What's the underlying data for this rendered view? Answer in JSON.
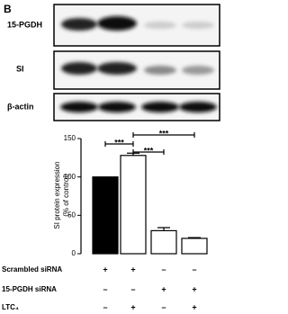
{
  "figure_label": "B",
  "blot_labels": [
    "15-PGDH",
    "SI",
    "β-actin"
  ],
  "chart_data": {
    "type": "bar",
    "y_label": [
      "SI protein expression",
      "(% of control)"
    ],
    "categories": [
      null,
      null,
      null,
      null
    ],
    "values": [
      100,
      128,
      30,
      20
    ],
    "errors": [
      null,
      3,
      4,
      1
    ],
    "colors": [
      "#000000",
      "#ffffff",
      "#ffffff",
      "#ffffff"
    ],
    "ylim": [
      0,
      150
    ],
    "yticks": [
      0,
      50,
      100,
      150
    ],
    "annotations": [
      "***",
      "***",
      "***"
    ]
  },
  "conditions": [
    {
      "label": "Scrambled siRNA",
      "signs": [
        "+",
        "+",
        "–",
        "–"
      ]
    },
    {
      "label": "15-PGDH siRNA",
      "signs": [
        "–",
        "–",
        "+",
        "+"
      ]
    },
    {
      "label": "LTC₄",
      "signs": [
        "–",
        "+",
        "–",
        "+"
      ]
    }
  ]
}
